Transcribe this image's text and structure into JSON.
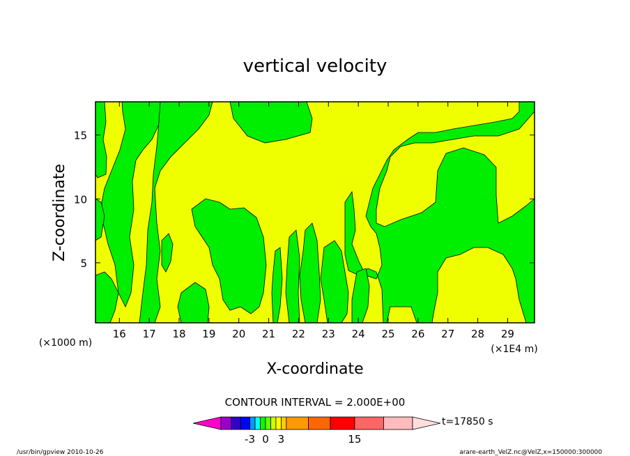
{
  "chart_data": {
    "type": "heatmap",
    "title": "vertical velocity",
    "xlabel": "X-coordinate",
    "ylabel": "Z-coordinate",
    "x_unit_left": "(×1000 m)",
    "x_unit_right": "(×1E4 m)",
    "xlim": [
      15.2,
      29.9
    ],
    "ylim": [
      0.3,
      17.6
    ],
    "x_ticks": [
      "16",
      "17",
      "18",
      "19",
      "20",
      "21",
      "22",
      "23",
      "24",
      "25",
      "26",
      "27",
      "28",
      "29"
    ],
    "y_ticks": [
      "5",
      "10",
      "15"
    ],
    "contour_interval_text": "CONTOUR INTERVAL = 2.000E+00",
    "time_label": "t=17850 s",
    "colorbar": {
      "colors": [
        "#ff00cc",
        "#9900cc",
        "#3300cc",
        "#0000ff",
        "#0099ff",
        "#00ffff",
        "#00ff00",
        "#66ff00",
        "#ccff00",
        "#ffff00",
        "#ffcc00",
        "#ff9900",
        "#ff6600",
        "#ff0000",
        "#ff6666",
        "#ffbbbb",
        "#ffdddd"
      ],
      "tick_labels": [
        "-3",
        "0",
        "3",
        "15"
      ]
    },
    "legend_regions": {
      "yellow": "#f0ff00",
      "green": "#00ee00"
    }
  },
  "footer": {
    "left": "/usr/bin/gpview   2010-10-26",
    "right": "arare-earth_VelZ.nc@VelZ,x=150000:300000"
  }
}
